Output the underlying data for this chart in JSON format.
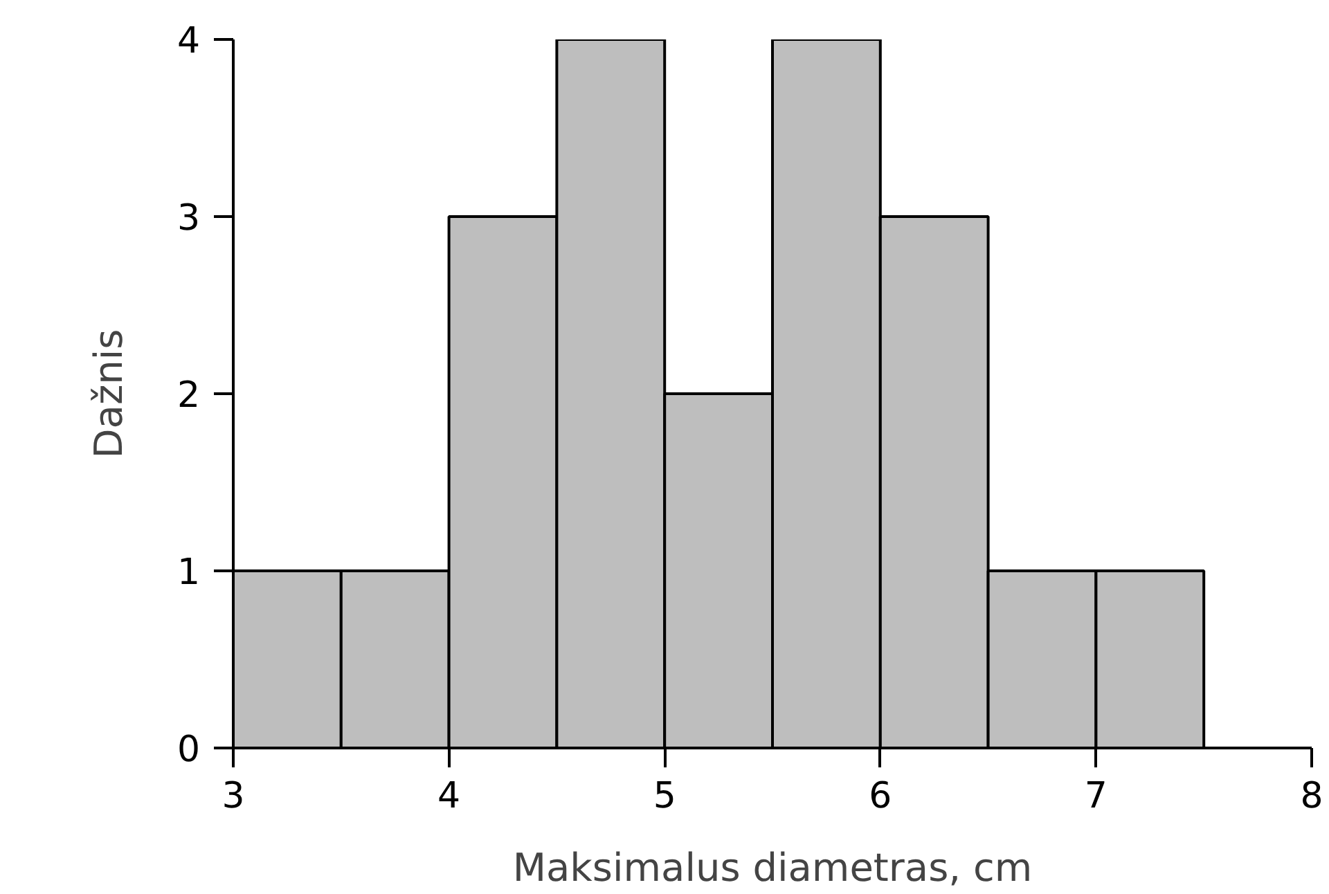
{
  "chart_data": {
    "type": "histogram",
    "xlabel": "Maksimalus diametras, cm",
    "ylabel": "Dažnis",
    "bins": [
      3,
      3.5,
      4,
      4.5,
      5,
      5.5,
      6,
      6.5,
      7,
      7.5
    ],
    "values": [
      1,
      1,
      3,
      4,
      2,
      4,
      3,
      1,
      1
    ],
    "color": "#bebebe",
    "xlim": [
      3,
      8
    ],
    "ylim": [
      0,
      4
    ],
    "xticks": [
      3,
      4,
      5,
      6,
      7,
      8
    ],
    "yticks": [
      0,
      1,
      2,
      3,
      4
    ],
    "grid": false
  }
}
